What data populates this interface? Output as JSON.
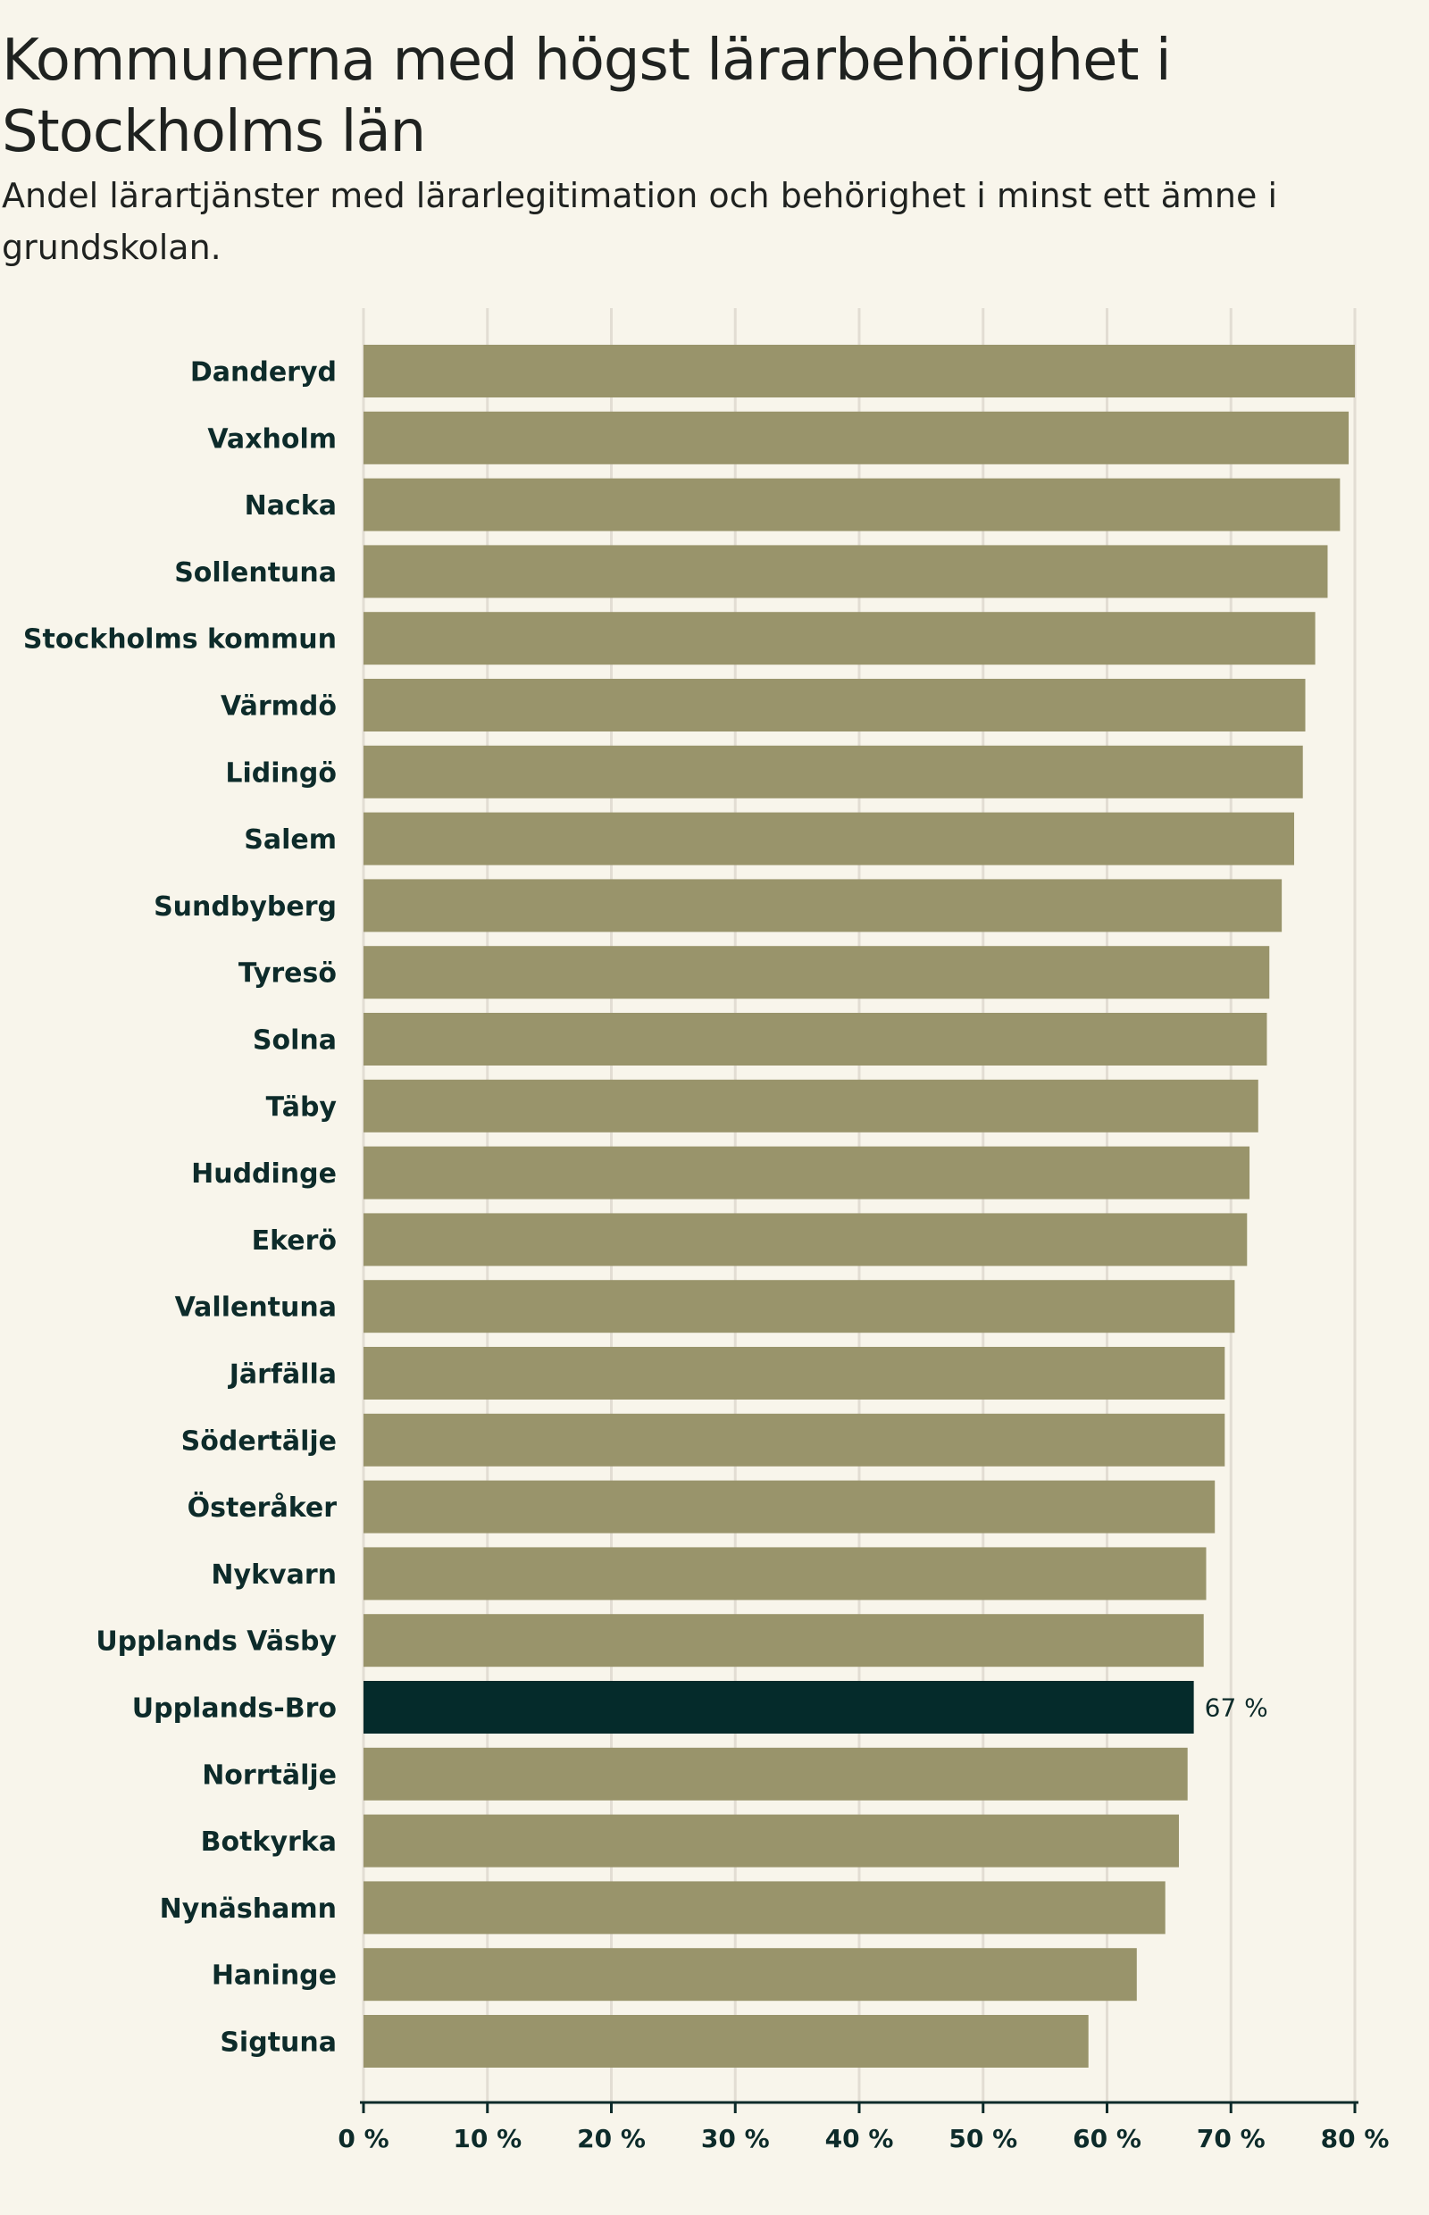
{
  "header": {
    "title": "Kommunerna med högst lärarbehörighet i Stockholms län",
    "subtitle": "Andel lärartjänster med lärarlegitimation och behörighet i minst ett ämne i grundskolan."
  },
  "colors": {
    "background": "#f8f5eb",
    "bar": "#99946b",
    "highlight": "#052b2b",
    "grid": "#e2ddd3",
    "text": "#0d2b2a"
  },
  "chart_data": {
    "type": "bar",
    "orientation": "horizontal",
    "title": "Kommunerna med högst lärarbehörighet i Stockholms län",
    "subtitle": "Andel lärartjänster med lärarlegitimation och behörighet i minst ett ämne i grundskolan.",
    "xlabel": "",
    "ylabel": "",
    "xlim": [
      0,
      80
    ],
    "grid": true,
    "xticks": [
      0,
      10,
      20,
      30,
      40,
      50,
      60,
      70,
      80
    ],
    "xtick_labels": [
      "0 %",
      "10 %",
      "20 %",
      "30 %",
      "40 %",
      "50 %",
      "60 %",
      "70 %",
      "80 %"
    ],
    "categories": [
      "Danderyd",
      "Vaxholm",
      "Nacka",
      "Sollentuna",
      "Stockholms kommun",
      "Värmdö",
      "Lidingö",
      "Salem",
      "Sundbyberg",
      "Tyresö",
      "Solna",
      "Täby",
      "Huddinge",
      "Ekerö",
      "Vallentuna",
      "Järfälla",
      "Södertälje",
      "Österåker",
      "Nykvarn",
      "Upplands Väsby",
      "Upplands-Bro",
      "Norrtälje",
      "Botkyrka",
      "Nynäshamn",
      "Haninge",
      "Sigtuna"
    ],
    "values": [
      80.0,
      79.5,
      78.8,
      77.8,
      76.8,
      76.0,
      75.8,
      75.1,
      74.1,
      73.1,
      72.9,
      72.2,
      71.5,
      71.3,
      70.3,
      69.5,
      69.5,
      68.7,
      68.0,
      67.8,
      67.0,
      66.5,
      65.8,
      64.7,
      62.4,
      58.5
    ],
    "highlight": "Upplands-Bro",
    "annotations": [
      {
        "category": "Upplands-Bro",
        "text": "67 %"
      }
    ]
  }
}
